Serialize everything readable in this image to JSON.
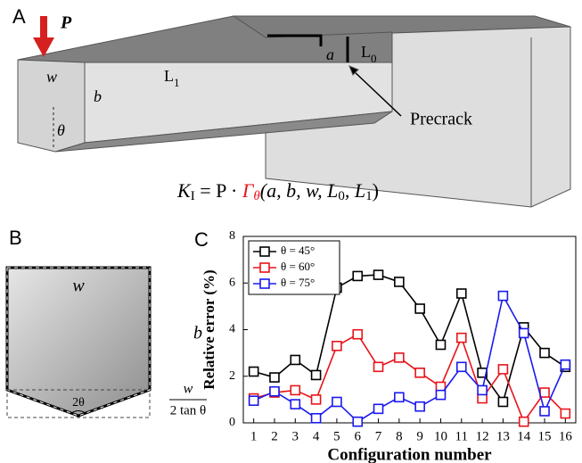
{
  "panels": {
    "a": "A",
    "b": "B",
    "c": "C"
  },
  "diagram_a": {
    "force": "P",
    "width": "w",
    "length": "L1",
    "height": "b",
    "angle": "θ",
    "crack_depth": "a",
    "crack_position": "L0",
    "callout": "Precrack",
    "formula": [
      "K",
      "I",
      " = P · ",
      "Γ",
      "θ",
      "(a, b, w, L",
      "0",
      ", L",
      "1",
      ")"
    ]
  },
  "diagram_b": {
    "width": "w",
    "height": "b",
    "angle": "2θ",
    "fraction_top": "w",
    "fraction_bottom": "2 tan θ"
  },
  "chart_data": {
    "type": "line",
    "xlabel": "Configuration number",
    "ylabel": "Relative error (%)",
    "x": [
      1,
      2,
      3,
      4,
      5,
      6,
      7,
      8,
      9,
      10,
      11,
      12,
      13,
      14,
      15,
      16
    ],
    "xlim": [
      0.5,
      16.5
    ],
    "xticks": [
      1,
      2,
      3,
      4,
      5,
      6,
      7,
      8,
      9,
      10,
      11,
      12,
      13,
      14,
      15,
      16
    ],
    "ylim": [
      0,
      8
    ],
    "yticks": [
      0,
      2,
      4,
      6,
      8
    ],
    "legend": "upper-left",
    "series": [
      {
        "name": "θ = 45°",
        "color": "#000000",
        "values": [
          2.2,
          1.95,
          2.7,
          2.05,
          5.8,
          6.3,
          6.35,
          6.05,
          4.9,
          3.35,
          5.55,
          2.15,
          0.9,
          4.1,
          3.0,
          2.4
        ]
      },
      {
        "name": "θ = 60°",
        "color": "#e8141b",
        "values": [
          1.05,
          1.3,
          1.4,
          1.0,
          3.3,
          3.8,
          2.4,
          2.8,
          2.15,
          1.55,
          3.65,
          1.05,
          2.3,
          0.05,
          1.3,
          0.4
        ]
      },
      {
        "name": "θ = 75°",
        "color": "#1a1aee",
        "values": [
          0.95,
          1.35,
          0.8,
          0.2,
          0.9,
          0.05,
          0.6,
          1.1,
          0.7,
          1.2,
          2.4,
          1.4,
          5.45,
          3.85,
          0.5,
          2.5
        ]
      }
    ]
  }
}
